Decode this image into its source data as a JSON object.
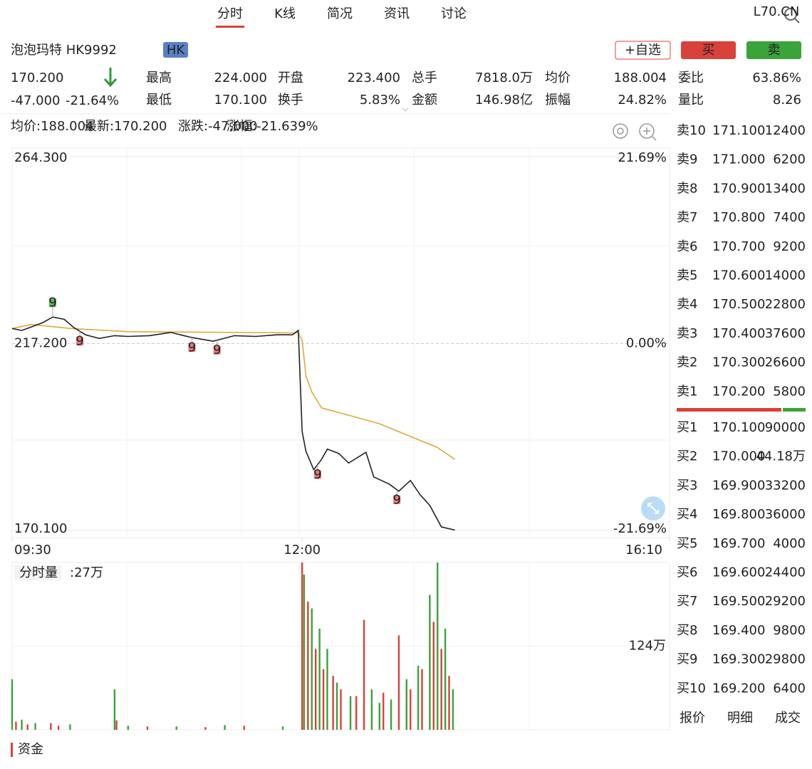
{
  "tabs": [
    "分时",
    "K线",
    "简况",
    "资讯",
    "讨论"
  ],
  "watermark": "L70.CN",
  "stock": {
    "name": "泡泡玛特 HK9992",
    "market": "HK",
    "price": "170.200",
    "change": "-47.000",
    "change_pct": "-21.64%"
  },
  "buttons": [
    "+自选",
    "买",
    "卖"
  ],
  "stats": [
    {
      "label": "最高",
      "value": "224.000",
      "color": "#d9413b"
    },
    {
      "label": "开盘",
      "value": "223.400",
      "color": "#d9413b"
    },
    {
      "label": "总手",
      "value": "7818.0万",
      "color": "#222222"
    },
    {
      "label": "均价",
      "value": "188.004",
      "color": "#2f9a3a"
    },
    {
      "label": "委比",
      "value": "63.86%",
      "color": "#d9413b"
    },
    {
      "label": "最低",
      "value": "170.100",
      "color": "#2f9a3a"
    },
    {
      "label": "换手",
      "value": "5.83%",
      "color": "#222222"
    },
    {
      "label": "金额",
      "value": "146.98亿",
      "color": "#222222"
    },
    {
      "label": "振幅",
      "value": "24.82%",
      "color": "#222222"
    },
    {
      "label": "量比",
      "value": "8.26",
      "color": "#d9413b"
    }
  ],
  "legend": [
    "均价:188.004",
    "最新:170.200",
    "涨跌:-47.000",
    "涨幅:-21.639%"
  ],
  "chart_data": {
    "type": "line",
    "xlim": [
      0,
      340
    ],
    "xticks": [
      {
        "value": 0,
        "label": "09:30"
      },
      {
        "value": 150,
        "label": "12:00"
      },
      {
        "value": 340,
        "label": "16:10"
      }
    ],
    "ylim": [
      170.1,
      264.3
    ],
    "yticks": [
      {
        "value": 264.3,
        "label": "264.300"
      },
      {
        "value": 217.2,
        "label": "217.200"
      },
      {
        "value": 170.1,
        "label": "170.100"
      }
    ],
    "ytick_colors": [
      "#d9413b",
      "#999999",
      "#2f9a3a"
    ],
    "y2lim": [
      -21.69,
      21.69
    ],
    "y2ticks": [
      {
        "value": 21.69,
        "label": "21.69%"
      },
      {
        "value": 0,
        "label": "0.00%"
      },
      {
        "value": -21.69,
        "label": "-21.69%"
      }
    ],
    "series": [
      {
        "color": "#222222",
        "x": [
          0,
          5,
          10,
          16,
          21,
          27,
          32,
          38,
          45,
          53,
          60,
          71,
          82,
          93,
          104,
          115,
          126,
          137,
          145,
          148,
          150,
          152,
          156,
          160,
          163,
          169,
          174,
          183,
          187,
          195,
          200,
          206,
          211,
          216,
          222,
          229
        ],
        "values": [
          221.0,
          220.5,
          221.4,
          222.5,
          223.9,
          223.3,
          221.2,
          219.4,
          218.5,
          219.2,
          219.0,
          219.2,
          220.0,
          218.7,
          217.8,
          219.2,
          219.0,
          219.4,
          219.4,
          220.5,
          195.0,
          190.0,
          185.4,
          188.0,
          190.6,
          189.5,
          187.1,
          189.8,
          183.6,
          181.8,
          180.0,
          182.7,
          179.1,
          176.4,
          171.0,
          170.2
        ]
      },
      {
        "color": "#e0a83a",
        "x": [
          0,
          10,
          30,
          60,
          148,
          150,
          152,
          155,
          160,
          175,
          190,
          210,
          220,
          229
        ],
        "values": [
          221.0,
          222.0,
          221.0,
          220.2,
          219.9,
          218.0,
          209.0,
          205.0,
          201.0,
          199.0,
          197.0,
          193.0,
          191.0,
          188.0
        ]
      }
    ],
    "markers": [
      {
        "label": "9",
        "x": 21,
        "color": "#5cb85c"
      },
      {
        "label": "9",
        "x": 35,
        "color": "#e47b7b"
      },
      {
        "label": "9",
        "x": 93,
        "color": "#e47b7b"
      },
      {
        "label": "9",
        "x": 106,
        "color": "#e47b7b"
      },
      {
        "label": "9",
        "x": 158,
        "color": "#e47b7b"
      },
      {
        "label": "9",
        "x": 199,
        "color": "#e47b7b"
      }
    ],
    "volume": {
      "label": "分时量",
      "current": ":27万",
      "ylim": [
        0,
        248
      ],
      "yticks": [
        {
          "value": 124,
          "label": "124万"
        }
      ],
      "series": [
        {
          "color": "#d9413b",
          "x": [
            2,
            8,
            20,
            24,
            54,
            70,
            100,
            120,
            150,
            153,
            157,
            161,
            166,
            170,
            178,
            182,
            192,
            200,
            206,
            212,
            218,
            222,
            226
          ],
          "values": [
            12,
            8,
            10,
            6,
            14,
            5,
            4,
            6,
            248,
            190,
            120,
            90,
            80,
            60,
            50,
            163,
            55,
            140,
            60,
            90,
            160,
            120,
            80
          ]
        },
        {
          "color": "#3aa33a",
          "x": [
            0,
            5,
            12,
            30,
            53,
            60,
            85,
            110,
            140,
            151,
            155,
            159,
            163,
            168,
            175,
            186,
            190,
            196,
            204,
            210,
            216,
            220,
            224,
            228
          ],
          "values": [
            75,
            15,
            10,
            8,
            60,
            6,
            5,
            7,
            5,
            230,
            180,
            150,
            120,
            70,
            50,
            60,
            40,
            45,
            75,
            95,
            200,
            248,
            150,
            60
          ]
        }
      ]
    }
  },
  "order_book": {
    "asks": [
      [
        "卖10",
        "171.100",
        "12400"
      ],
      [
        "卖9",
        "171.000",
        "6200"
      ],
      [
        "卖8",
        "170.900",
        "13400"
      ],
      [
        "卖7",
        "170.800",
        "7400"
      ],
      [
        "卖6",
        "170.700",
        "9200"
      ],
      [
        "卖5",
        "170.600",
        "14000"
      ],
      [
        "卖4",
        "170.500",
        "22800"
      ],
      [
        "卖3",
        "170.400",
        "37600"
      ],
      [
        "卖2",
        "170.300",
        "26600"
      ],
      [
        "卖1",
        "170.200",
        "5800"
      ]
    ],
    "bids": [
      [
        "买1",
        "170.100",
        "90000"
      ],
      [
        "买2",
        "170.000",
        "44.18万"
      ],
      [
        "买3",
        "169.900",
        "33200"
      ],
      [
        "买4",
        "169.800",
        "36000"
      ],
      [
        "买5",
        "169.700",
        "4000"
      ],
      [
        "买6",
        "169.600",
        "24400"
      ],
      [
        "买7",
        "169.500",
        "29200"
      ],
      [
        "买8",
        "169.400",
        "9800"
      ],
      [
        "买9",
        "169.300",
        "29800"
      ],
      [
        "买10",
        "169.200",
        "6400"
      ]
    ]
  },
  "bottom_tabs": [
    "报价",
    "明细",
    "成交"
  ],
  "section": "资金"
}
